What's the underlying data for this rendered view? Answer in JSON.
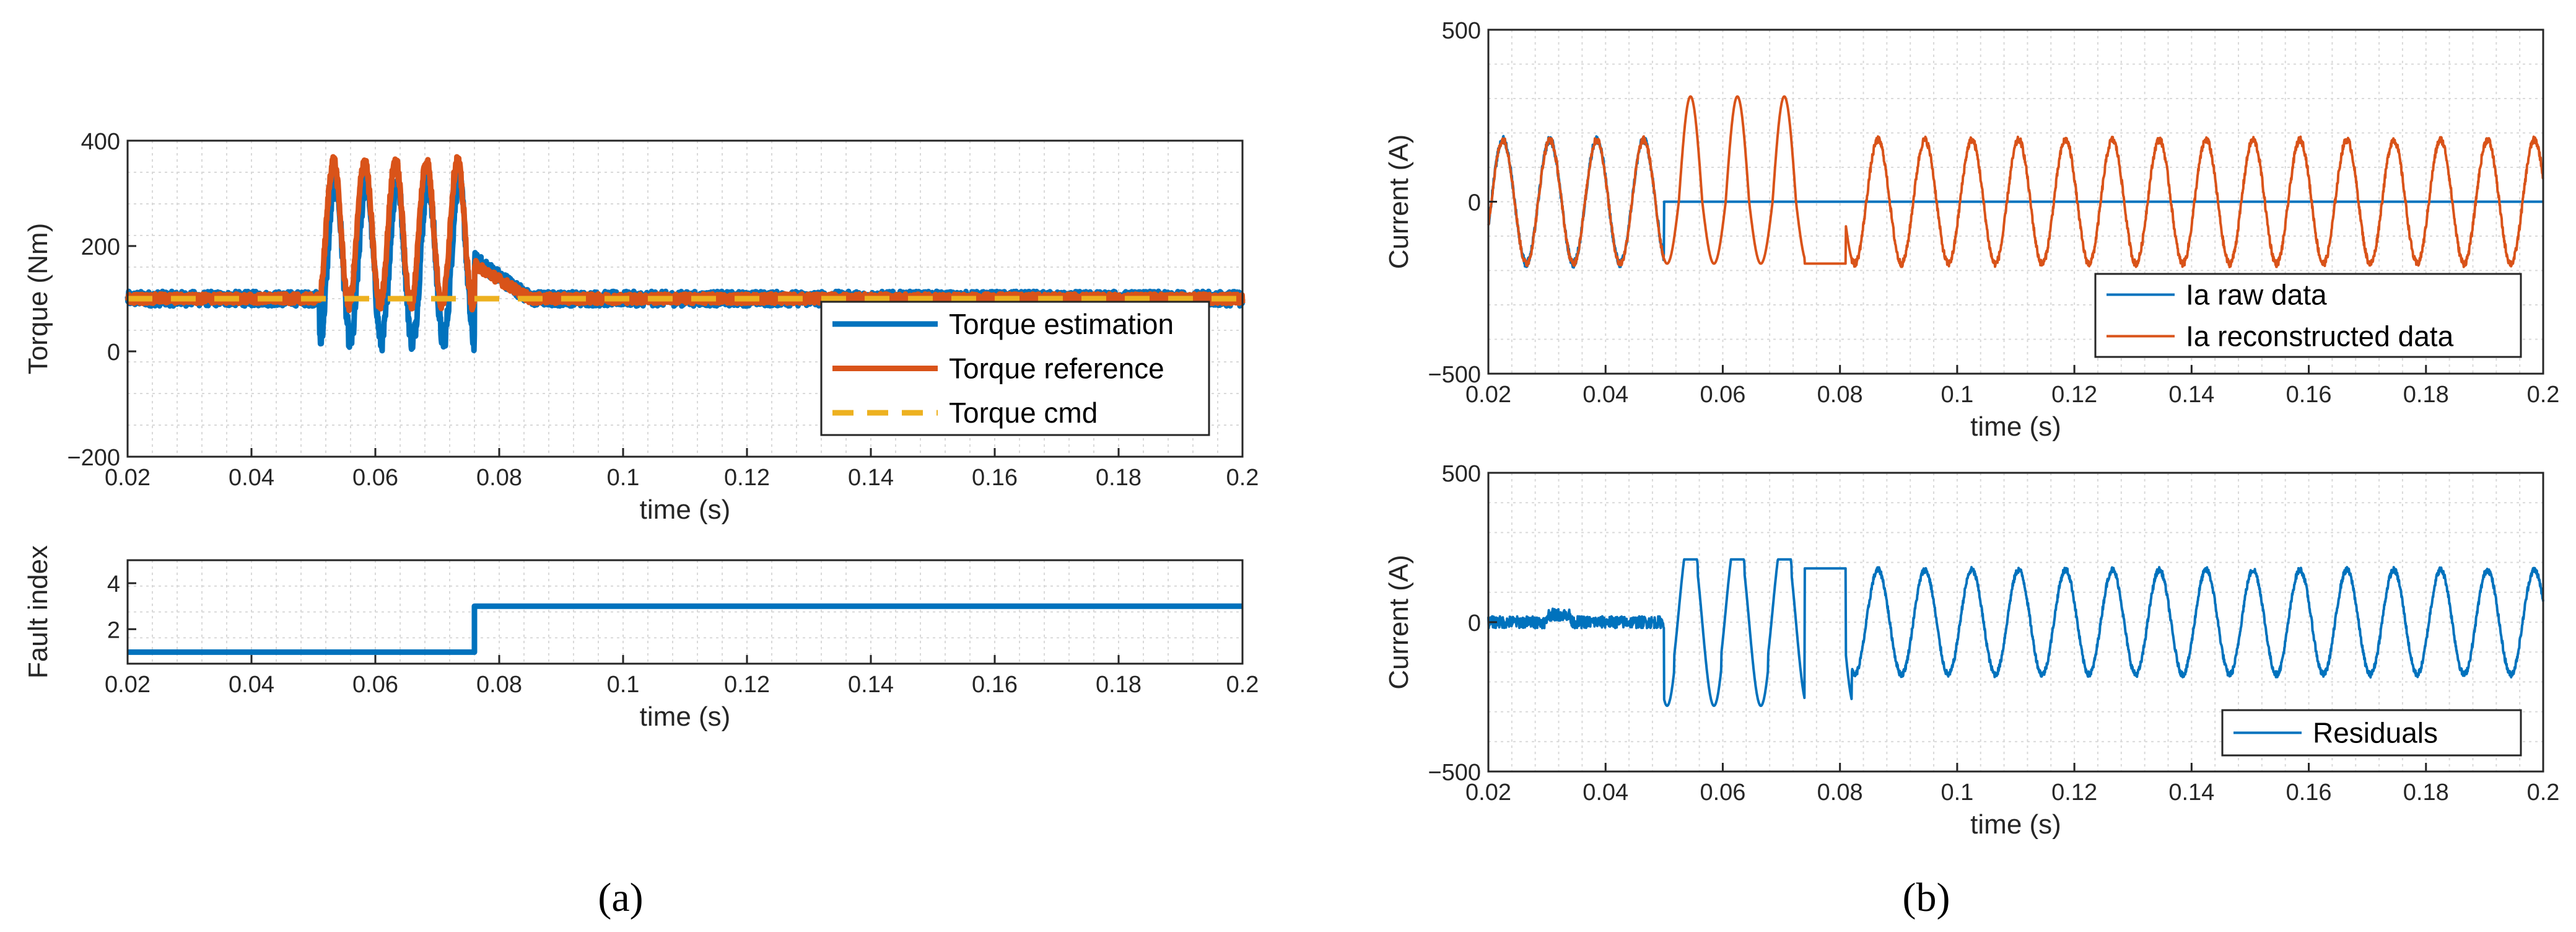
{
  "figure": {
    "caption_a": "(a)",
    "caption_b": "(b)",
    "colors": {
      "blue": "#0072BD",
      "orange": "#D95319",
      "yellow": "#EDB120",
      "grid": "#d9d9d9",
      "axis": "#262626"
    }
  },
  "chart_data": [
    {
      "id": "a_top",
      "type": "line",
      "title": "",
      "xlabel": "time (s)",
      "ylabel": "Torque (Nm)",
      "xlim": [
        0.02,
        0.2
      ],
      "ylim": [
        -200,
        400
      ],
      "xticks": [
        0.02,
        0.04,
        0.06,
        0.08,
        0.1,
        0.12,
        0.14,
        0.16,
        0.18,
        0.2
      ],
      "xtick_labels": [
        "0.02",
        "0.04",
        "0.06",
        "0.08",
        "0.1",
        "0.12",
        "0.14",
        "0.16",
        "0.18",
        "0.2"
      ],
      "yticks": [
        -200,
        0,
        200,
        400
      ],
      "ytick_labels": [
        "−200",
        "0",
        "200",
        "400"
      ],
      "grid": true,
      "legend_position": "bottom-right",
      "series": [
        {
          "name": "Torque estimation",
          "color": "#0072BD",
          "style": "solid",
          "model": {
            "kind": "torque_est",
            "baseline": 100,
            "burst_start": 0.051,
            "burst_end": 0.076,
            "burst_mean": 170,
            "burst_amp": 150,
            "burst_freq_hz": 200,
            "settle_value": 175,
            "settle_end": 0.085,
            "noise": 14
          }
        },
        {
          "name": "Torque reference",
          "color": "#D95319",
          "style": "solid",
          "model": {
            "kind": "torque_ref",
            "baseline": 100,
            "burst_start": 0.051,
            "burst_end": 0.076,
            "burst_mean": 225,
            "burst_amp": 135,
            "burst_freq_hz": 200,
            "settle_value": 165,
            "settle_end": 0.085,
            "noise": 9
          }
        },
        {
          "name": "Torque cmd",
          "color": "#EDB120",
          "style": "dashed",
          "model": {
            "kind": "constant",
            "value": 100
          }
        }
      ]
    },
    {
      "id": "a_bottom",
      "type": "line",
      "title": "",
      "xlabel": "time (s)",
      "ylabel": "Fault index",
      "xlim": [
        0.02,
        0.2
      ],
      "ylim": [
        0.5,
        5
      ],
      "xticks": [
        0.02,
        0.04,
        0.06,
        0.08,
        0.1,
        0.12,
        0.14,
        0.16,
        0.18,
        0.2
      ],
      "xtick_labels": [
        "0.02",
        "0.04",
        "0.06",
        "0.08",
        "0.1",
        "0.12",
        "0.14",
        "0.16",
        "0.18",
        "0.2"
      ],
      "yticks": [
        2,
        4
      ],
      "ytick_labels": [
        "2",
        "4"
      ],
      "grid": true,
      "series": [
        {
          "name": "Fault index",
          "color": "#0072BD",
          "style": "solid",
          "x": [
            0.02,
            0.076,
            0.076,
            0.2
          ],
          "y": [
            1,
            1,
            3,
            3
          ]
        }
      ]
    },
    {
      "id": "b_top",
      "type": "line",
      "title": "",
      "xlabel": "time (s)",
      "ylabel": "Current (A)",
      "xlim": [
        0.02,
        0.2
      ],
      "ylim": [
        -500,
        500
      ],
      "xticks": [
        0.02,
        0.04,
        0.06,
        0.08,
        0.1,
        0.12,
        0.14,
        0.16,
        0.18,
        0.2
      ],
      "xtick_labels": [
        "0.02",
        "0.04",
        "0.06",
        "0.08",
        "0.1",
        "0.12",
        "0.14",
        "0.16",
        "0.18",
        "0.2"
      ],
      "yticks": [
        -500,
        0,
        500
      ],
      "ytick_labels": [
        "−500",
        "0",
        "500"
      ],
      "grid": true,
      "legend_position": "bottom-right",
      "series": [
        {
          "name": "Ia raw data",
          "color": "#0072BD",
          "style": "solid",
          "model": {
            "kind": "raw",
            "amp": 180,
            "freq_hz": 125,
            "cut_at": 0.05
          }
        },
        {
          "name": "Ia reconstructed data",
          "color": "#D95319",
          "style": "solid",
          "model": {
            "kind": "recon",
            "amp": 180,
            "freq_hz": 125,
            "distort_start": 0.05,
            "distort_end": 0.082
          }
        }
      ]
    },
    {
      "id": "b_bottom",
      "type": "line",
      "title": "",
      "xlabel": "time (s)",
      "ylabel": "Current (A)",
      "xlim": [
        0.02,
        0.2
      ],
      "ylim": [
        -500,
        500
      ],
      "xticks": [
        0.02,
        0.04,
        0.06,
        0.08,
        0.1,
        0.12,
        0.14,
        0.16,
        0.18,
        0.2
      ],
      "xtick_labels": [
        "0.02",
        "0.04",
        "0.06",
        "0.08",
        "0.1",
        "0.12",
        "0.14",
        "0.16",
        "0.18",
        "0.2"
      ],
      "yticks": [
        -500,
        0,
        500
      ],
      "ytick_labels": [
        "−500",
        "0",
        "500"
      ],
      "grid": true,
      "legend_position": "bottom-right",
      "series": [
        {
          "name": "Residuals",
          "color": "#0072BD",
          "style": "solid",
          "model": {
            "kind": "residual",
            "amp": 175,
            "freq_hz": 125,
            "start": 0.05,
            "distort_end": 0.082,
            "pre_noise": 20
          }
        }
      ]
    }
  ]
}
